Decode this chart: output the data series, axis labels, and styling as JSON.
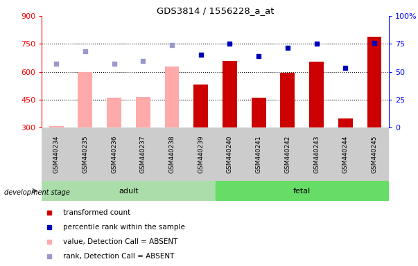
{
  "title": "GDS3814 / 1556228_a_at",
  "samples": [
    "GSM440234",
    "GSM440235",
    "GSM440236",
    "GSM440237",
    "GSM440238",
    "GSM440239",
    "GSM440240",
    "GSM440241",
    "GSM440242",
    "GSM440243",
    "GSM440244",
    "GSM440245"
  ],
  "absent_mask": [
    true,
    true,
    true,
    true,
    true,
    false,
    false,
    false,
    false,
    false,
    false,
    false
  ],
  "transformed_count": [
    310,
    600,
    460,
    465,
    630,
    530,
    660,
    460,
    595,
    655,
    350,
    790
  ],
  "percentile_rank_left": [
    645,
    710,
    645,
    660,
    745,
    690,
    750,
    685,
    730,
    750,
    620,
    755
  ],
  "bar_color_present": "#cc0000",
  "bar_color_absent": "#ffaaaa",
  "dot_color_present": "#0000bb",
  "dot_color_absent": "#9999cc",
  "bar_width": 0.5,
  "left_ylim": [
    300,
    900
  ],
  "right_ylim": [
    0,
    100
  ],
  "left_yticks": [
    300,
    450,
    600,
    750,
    900
  ],
  "right_yticks": [
    0,
    25,
    50,
    75,
    100
  ],
  "right_yticklabels": [
    "0",
    "25",
    "50",
    "75",
    "100%"
  ],
  "grid_dotted_values": [
    450,
    600,
    750
  ],
  "adult_color": "#aaddaa",
  "fetal_color": "#66dd66",
  "tick_bg_color": "#cccccc",
  "plot_bg": "#ffffff",
  "legend_items": [
    {
      "label": "transformed count",
      "color": "#cc0000"
    },
    {
      "label": "percentile rank within the sample",
      "color": "#0000bb"
    },
    {
      "label": "value, Detection Call = ABSENT",
      "color": "#ffaaaa"
    },
    {
      "label": "rank, Detection Call = ABSENT",
      "color": "#9999cc"
    }
  ]
}
